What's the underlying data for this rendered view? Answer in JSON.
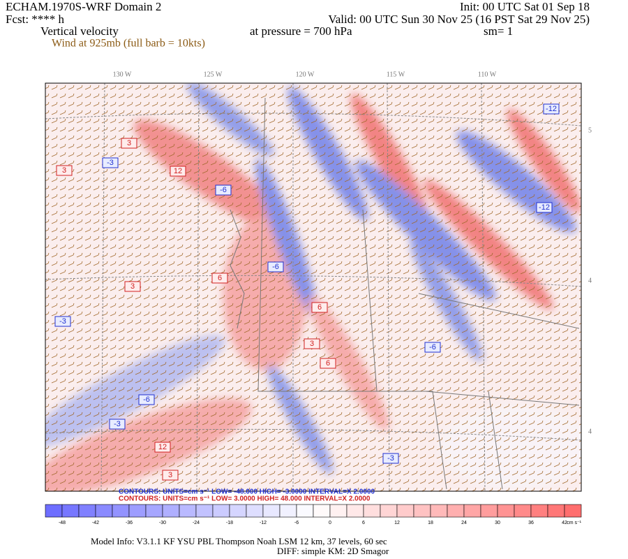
{
  "header": {
    "model": "ECHAM.1970S-WRF Domain 2",
    "init": "Init: 00 UTC Sat 01 Sep 18",
    "forecast": "Fcst: **** h",
    "valid": "Valid: 00 UTC Sun 30 Nov 25 (16 PST Sat 29 Nov 25)",
    "field": "Vertical velocity",
    "level": "at pressure =  700 hPa",
    "smoothing": "sm= 1",
    "wind": "Wind at 925mb (full barb = 10kts)"
  },
  "map": {
    "longitude_labels": [
      "130 W",
      "125 W",
      "120 W",
      "115 W",
      "110 W"
    ],
    "latitude_labels": [
      "5",
      "4",
      "4"
    ],
    "contour_labels": [
      "3",
      "-3",
      "3",
      "12",
      "-6",
      "-12",
      "6",
      "-6",
      "3",
      "-3",
      "-6",
      "12",
      "3",
      "-3",
      "6",
      "-6",
      "3",
      "-12",
      "6",
      "-3"
    ]
  },
  "contours": {
    "negative": "CONTOURS:  UNITS=cm s⁻¹  LOW= -48.000  HIGH= -3.0000  INTERVAL=X  2.0000",
    "positive": "CONTOURS:  UNITS=cm s⁻¹  LOW=  3.0000    HIGH=  48.000     INTERVAL=X  2.0000"
  },
  "colorbar": {
    "ticks": [
      "-48",
      "-42",
      "-36",
      "-30",
      "-24",
      "-18",
      "-12",
      "-6",
      "0",
      "6",
      "12",
      "18",
      "24",
      "30",
      "36",
      "42"
    ],
    "units": "cm s⁻¹"
  },
  "footer": {
    "model_info": "Model Info: V3.1.1    KF     YSU PBL   Thompson     Noah LSM   12 km,     37 levels,    60 sec",
    "diffusion": "DIFF: simple KM: 2D Smagor"
  }
}
